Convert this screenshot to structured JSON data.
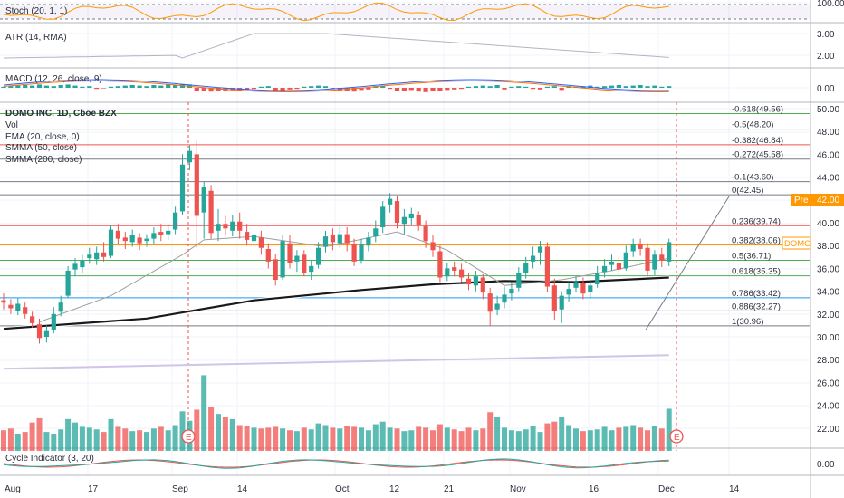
{
  "panes": {
    "stoch": {
      "label": "Stoch (20, 1, 1)",
      "ticks": [
        "100.00"
      ]
    },
    "atr": {
      "label": "ATR (14, RMA)",
      "ticks": [
        "3.00",
        "2.00"
      ]
    },
    "macd": {
      "label": "MACD (12, 26, close, 9)",
      "ticks": [
        "0.00"
      ]
    },
    "cycle": {
      "label": "Cycle Indicator (3, 20)",
      "ticks": [
        "0.00"
      ]
    }
  },
  "main": {
    "legend": [
      "DOMO INC, 1D, Cboe BZX",
      "Vol",
      "EMA (20, close, 0)",
      "SMMA (50, close)",
      "SMMA (200, close)"
    ],
    "price_ticks": [
      "50.00",
      "48.00",
      "46.00",
      "44.00",
      "42.00",
      "40.00",
      "38.00",
      "36.00",
      "34.00",
      "32.00",
      "30.00",
      "28.00",
      "26.00",
      "24.00",
      "22.00"
    ],
    "tags": {
      "pre_label": "Pre",
      "pre_value": "42.00",
      "symbol": "DOMO"
    },
    "earnings_marker": "E"
  },
  "x_ticks": [
    "Aug",
    "17",
    "Sep",
    "14",
    "Oct",
    "12",
    "21",
    "Nov",
    "16",
    "Dec",
    "14"
  ],
  "colors": {
    "up": "#26a69a",
    "down": "#ef5350",
    "ema": "#9e9e9e",
    "smma50": "#ffffff",
    "smma200": "#d1c4e9"
  },
  "chart_data": {
    "type": "candlestick",
    "symbol": "DOMO INC",
    "interval": "1D",
    "exchange": "Cboe BZX",
    "ylim": [
      20,
      51
    ],
    "fibonacci": [
      {
        "ratio": "-0.618",
        "price": 49.56,
        "color": "#4caf50"
      },
      {
        "ratio": "-0.5",
        "price": 48.2,
        "color": "#81c784"
      },
      {
        "ratio": "-0.382",
        "price": 46.84,
        "color": "#ef5350"
      },
      {
        "ratio": "-0.272",
        "price": 45.58,
        "color": "#787b86"
      },
      {
        "ratio": "-0.1",
        "price": 43.6,
        "color": "#787b86"
      },
      {
        "ratio": "0",
        "price": 42.45,
        "color": "#787b86"
      },
      {
        "ratio": "0.236",
        "price": 39.74,
        "color": "#ef5350"
      },
      {
        "ratio": "0.382",
        "price": 38.06,
        "color": "#ff9800"
      },
      {
        "ratio": "0.5",
        "price": 36.71,
        "color": "#4caf50"
      },
      {
        "ratio": "0.618",
        "price": 35.35,
        "color": "#4caf50"
      },
      {
        "ratio": "0.786",
        "price": 33.42,
        "color": "#2196f3"
      },
      {
        "ratio": "0.886",
        "price": 32.27,
        "color": "#787b86"
      },
      {
        "ratio": "1",
        "price": 30.96,
        "color": "#787b86"
      }
    ],
    "candles": [
      [
        33.2,
        33.0,
        33.8,
        32.4
      ],
      [
        32.8,
        32.5,
        33.3,
        32.0
      ],
      [
        32.3,
        32.9,
        33.4,
        31.9
      ],
      [
        32.6,
        32.0,
        33.0,
        31.6
      ],
      [
        31.8,
        31.2,
        32.2,
        30.8
      ],
      [
        31.1,
        29.9,
        31.6,
        29.4
      ],
      [
        30.0,
        30.5,
        31.0,
        29.5
      ],
      [
        30.6,
        32.0,
        32.6,
        30.3
      ],
      [
        32.2,
        33.0,
        33.6,
        31.8
      ],
      [
        33.6,
        35.8,
        36.2,
        33.4
      ],
      [
        35.9,
        36.4,
        36.9,
        35.3
      ],
      [
        36.1,
        36.7,
        37.2,
        35.6
      ],
      [
        36.9,
        37.2,
        37.8,
        36.4
      ],
      [
        36.8,
        37.4,
        37.9,
        36.3
      ],
      [
        37.4,
        37.0,
        38.3,
        36.6
      ],
      [
        37.1,
        39.4,
        39.8,
        36.9
      ],
      [
        39.3,
        38.6,
        39.9,
        38.1
      ],
      [
        38.7,
        38.4,
        39.2,
        37.7
      ],
      [
        38.3,
        38.9,
        39.4,
        37.9
      ],
      [
        38.7,
        38.2,
        39.1,
        37.6
      ],
      [
        38.4,
        38.6,
        39.0,
        37.9
      ],
      [
        38.6,
        39.1,
        39.6,
        38.1
      ],
      [
        39.2,
        38.9,
        39.9,
        38.4
      ],
      [
        39.0,
        39.3,
        39.9,
        38.5
      ],
      [
        39.4,
        40.9,
        41.4,
        39.0
      ],
      [
        41.0,
        45.1,
        46.0,
        40.7
      ],
      [
        45.3,
        46.3,
        46.8,
        44.6
      ],
      [
        46.0,
        40.6,
        47.2,
        37.8
      ],
      [
        40.9,
        43.1,
        43.6,
        38.6
      ],
      [
        42.8,
        39.1,
        43.3,
        38.6
      ],
      [
        39.3,
        39.9,
        41.2,
        38.4
      ],
      [
        39.9,
        39.5,
        40.6,
        38.9
      ],
      [
        39.3,
        40.1,
        40.7,
        38.8
      ],
      [
        40.1,
        39.3,
        40.9,
        38.6
      ],
      [
        39.2,
        38.5,
        39.9,
        38.0
      ],
      [
        38.4,
        38.9,
        39.4,
        37.6
      ],
      [
        38.7,
        37.8,
        39.3,
        37.2
      ],
      [
        37.7,
        36.6,
        38.2,
        36.0
      ],
      [
        36.8,
        35.0,
        37.3,
        34.5
      ],
      [
        35.2,
        38.4,
        38.9,
        35.0
      ],
      [
        38.2,
        36.5,
        38.9,
        36.0
      ],
      [
        36.6,
        37.1,
        37.6,
        35.7
      ],
      [
        37.2,
        35.6,
        37.6,
        35.3
      ],
      [
        35.7,
        36.2,
        36.7,
        35.0
      ],
      [
        36.3,
        37.8,
        38.3,
        36.0
      ],
      [
        37.9,
        38.8,
        39.3,
        37.4
      ],
      [
        38.9,
        38.3,
        39.5,
        37.6
      ],
      [
        38.2,
        39.0,
        39.8,
        37.8
      ],
      [
        39.0,
        38.2,
        39.6,
        37.5
      ],
      [
        38.1,
        36.6,
        38.6,
        36.2
      ],
      [
        36.7,
        38.1,
        38.6,
        36.4
      ],
      [
        38.0,
        38.7,
        39.2,
        37.5
      ],
      [
        38.8,
        39.5,
        40.2,
        38.3
      ],
      [
        39.6,
        41.4,
        41.9,
        39.1
      ],
      [
        41.6,
        42.1,
        42.6,
        40.9
      ],
      [
        41.9,
        40.0,
        42.3,
        39.5
      ],
      [
        39.9,
        40.5,
        41.2,
        39.0
      ],
      [
        40.4,
        40.8,
        41.3,
        39.8
      ],
      [
        40.7,
        39.8,
        41.0,
        39.3
      ],
      [
        39.7,
        38.4,
        40.2,
        37.8
      ],
      [
        38.3,
        37.6,
        38.9,
        37.0
      ],
      [
        37.5,
        35.2,
        38.0,
        34.8
      ],
      [
        35.3,
        36.0,
        36.5,
        34.9
      ],
      [
        36.1,
        35.8,
        36.6,
        35.3
      ],
      [
        35.9,
        35.2,
        36.4,
        34.8
      ],
      [
        35.1,
        34.6,
        35.6,
        34.1
      ],
      [
        34.5,
        35.3,
        35.8,
        34.0
      ],
      [
        35.2,
        33.9,
        35.5,
        33.3
      ],
      [
        33.8,
        32.2,
        34.3,
        31.0
      ],
      [
        32.4,
        32.9,
        33.6,
        31.9
      ],
      [
        33.0,
        33.7,
        34.4,
        32.5
      ],
      [
        33.8,
        34.2,
        34.8,
        33.2
      ],
      [
        34.3,
        35.6,
        36.1,
        34.0
      ],
      [
        35.6,
        36.5,
        37.0,
        35.1
      ],
      [
        36.6,
        37.1,
        37.9,
        36.0
      ],
      [
        37.4,
        37.9,
        38.4,
        36.3
      ],
      [
        37.9,
        34.4,
        38.3,
        33.9
      ],
      [
        34.5,
        32.3,
        35.1,
        31.5
      ],
      [
        32.4,
        33.6,
        34.0,
        31.2
      ],
      [
        33.7,
        34.2,
        34.8,
        33.1
      ],
      [
        34.3,
        34.8,
        35.3,
        33.9
      ],
      [
        34.7,
        33.8,
        35.2,
        33.3
      ],
      [
        33.9,
        34.5,
        35.0,
        33.4
      ],
      [
        34.6,
        35.6,
        36.2,
        34.3
      ],
      [
        35.7,
        36.2,
        36.8,
        35.2
      ],
      [
        36.3,
        36.6,
        37.2,
        35.8
      ],
      [
        36.5,
        35.9,
        37.0,
        35.4
      ],
      [
        36.0,
        37.4,
        38.0,
        35.8
      ],
      [
        37.5,
        38.1,
        38.6,
        37.0
      ],
      [
        38.1,
        37.7,
        38.6,
        37.1
      ],
      [
        37.8,
        35.8,
        38.2,
        35.3
      ],
      [
        35.9,
        37.2,
        37.6,
        35.4
      ],
      [
        37.2,
        36.7,
        37.8,
        36.1
      ],
      [
        36.6,
        38.3,
        38.6,
        36.2
      ]
    ],
    "volumes": [
      24,
      26,
      20,
      22,
      33,
      38,
      22,
      20,
      25,
      37,
      33,
      28,
      27,
      25,
      22,
      37,
      28,
      26,
      23,
      24,
      22,
      26,
      28,
      24,
      30,
      46,
      35,
      48,
      88,
      51,
      43,
      39,
      37,
      30,
      29,
      27,
      26,
      27,
      28,
      26,
      24,
      23,
      27,
      25,
      32,
      30,
      27,
      26,
      29,
      28,
      27,
      24,
      31,
      34,
      27,
      26,
      23,
      24,
      28,
      27,
      24,
      31,
      27,
      25,
      23,
      27,
      24,
      26,
      45,
      39,
      27,
      24,
      23,
      25,
      29,
      22,
      32,
      34,
      39,
      30,
      26,
      23,
      24,
      25,
      28,
      24,
      27,
      28,
      30,
      27,
      24,
      29,
      26,
      49
    ],
    "smma200": [
      [
        0,
        27.2
      ],
      [
        93,
        28.4
      ]
    ],
    "smma50": [
      [
        0,
        30.7
      ],
      [
        20,
        31.6
      ],
      [
        35,
        33.2
      ],
      [
        50,
        34.1
      ],
      [
        60,
        34.6
      ],
      [
        70,
        34.9
      ],
      [
        80,
        34.8
      ],
      [
        93,
        35.2
      ]
    ],
    "ema20": [
      [
        5,
        31.3
      ],
      [
        15,
        33.6
      ],
      [
        25,
        37.2
      ],
      [
        28,
        38.5
      ],
      [
        35,
        38.8
      ],
      [
        45,
        37.9
      ],
      [
        55,
        39.2
      ],
      [
        62,
        37.6
      ],
      [
        70,
        34.5
      ],
      [
        78,
        35.0
      ],
      [
        85,
        35.8
      ],
      [
        93,
        36.9
      ]
    ],
    "macd_hist": [
      0.2,
      0.3,
      0.4,
      0.5,
      0.4,
      0.6,
      0.4,
      0.3,
      0.5,
      0.6,
      0.4,
      0.2,
      0.3,
      -0.2,
      -0.1,
      0.2,
      0.3,
      0.4,
      0.5,
      0.4,
      0.3,
      0.5,
      0.4,
      0.6,
      0.5,
      0.7,
      0.6,
      -0.5,
      -0.6,
      -0.7,
      -0.6,
      -0.5,
      -0.4,
      -0.6,
      -0.3,
      -0.2,
      0.2,
      0.3,
      -0.4,
      -0.5,
      -0.3,
      -0.2,
      0.2,
      0.3,
      0.4,
      0.3,
      -0.2,
      -0.5,
      -0.6,
      -0.7,
      -0.4,
      -0.3,
      0.3,
      0.4,
      -0.2,
      -0.5,
      -0.6,
      -0.4,
      -0.7,
      -0.8,
      -0.5,
      -0.6,
      -0.4,
      -0.3,
      -0.2,
      0.2,
      0.3,
      0.4,
      0.3,
      0.5,
      -0.3,
      0.2,
      0.3,
      0.2,
      -0.2,
      -0.3,
      0.2,
      0.3,
      -0.4,
      0.3,
      0.2,
      0.3,
      0.4,
      0.2,
      0.3,
      0.4,
      0.5,
      0.3,
      0.4,
      0.5,
      0.3,
      0.4,
      0.2,
      0.3
    ]
  }
}
